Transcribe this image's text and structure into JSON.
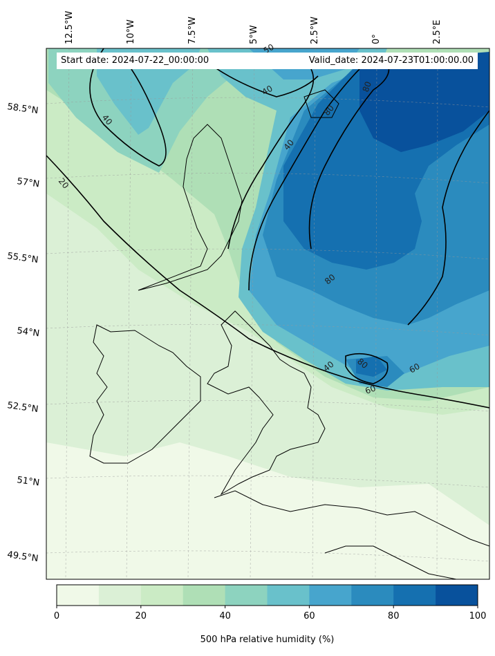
{
  "map": {
    "start_date_text": "Start date: 2024-07-22_00:00:00",
    "valid_date_text": "Valid_date: 2024-07-23T01:00:00.00",
    "longitude_labels": [
      "12.5°W",
      "10°W",
      "7.5°W",
      "5°W",
      "2.5°W",
      "0°",
      "2.5°E"
    ],
    "latitude_labels": [
      "58.5°N",
      "57°N",
      "55.5°N",
      "54°N",
      "52.5°N",
      "51°N",
      "49.5°N"
    ],
    "contour_labels": [
      "20",
      "40",
      "40",
      "40",
      "40",
      "50",
      "60",
      "60",
      "80",
      "80",
      "80",
      "80"
    ],
    "gridlines": true
  },
  "colorbar": {
    "title": "500 hPa relative humidity (%)",
    "tick_labels": [
      "0",
      "20",
      "40",
      "60",
      "80",
      "100"
    ],
    "colors": [
      "#f0f9e8",
      "#dbf0d6",
      "#cbebc5",
      "#afdfb6",
      "#8dd3bf",
      "#69c1cb",
      "#47a5cd",
      "#2b8bbe",
      "#1570b0",
      "#08519c"
    ]
  }
}
